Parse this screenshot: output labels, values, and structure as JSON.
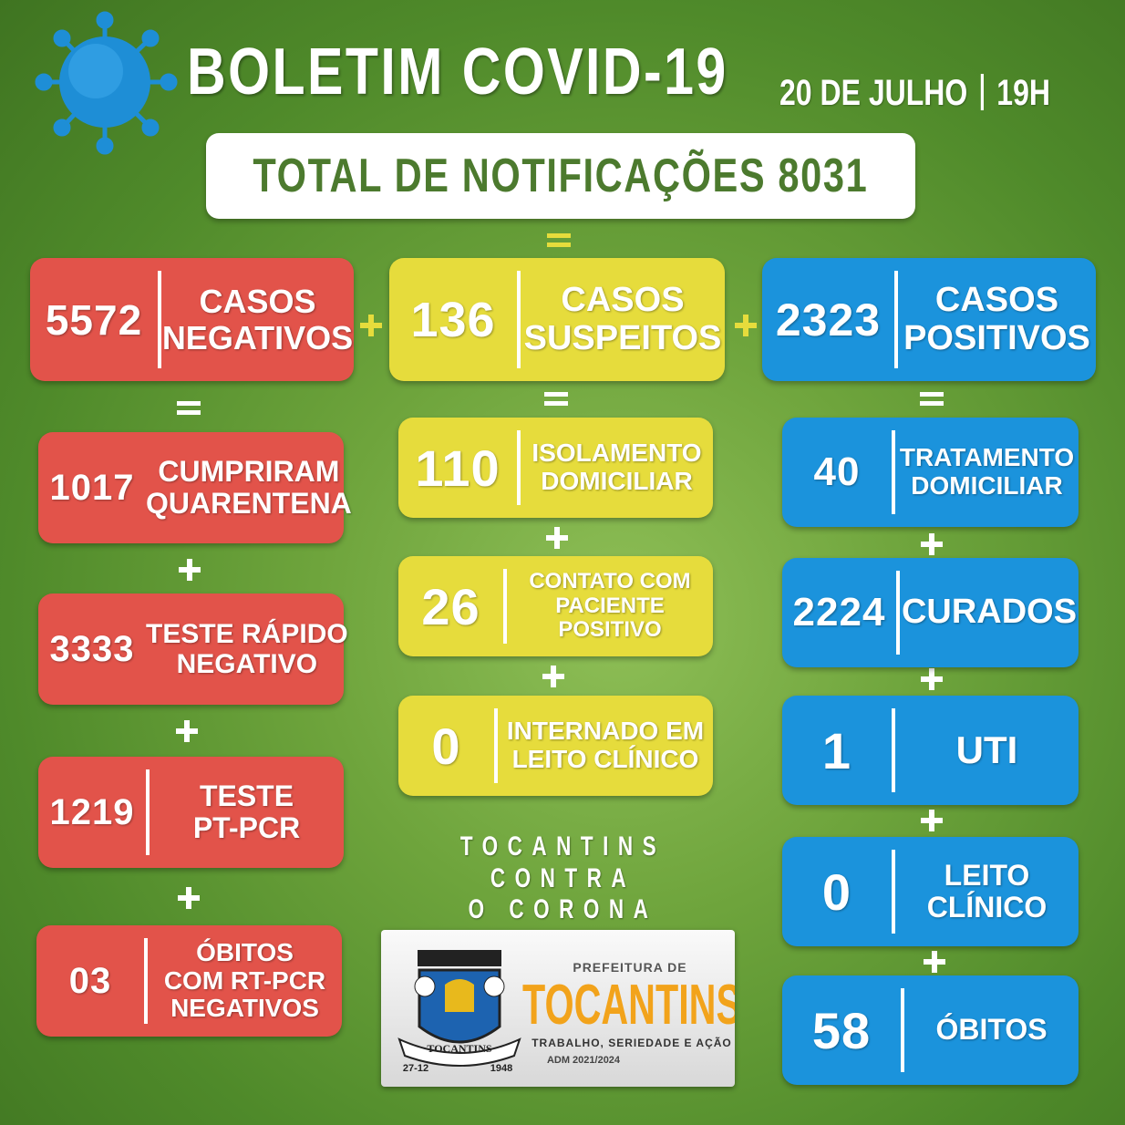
{
  "header": {
    "title": "BOLETIM COVID-19",
    "date": "20 DE JULHO",
    "time": "19H"
  },
  "total": {
    "label": "TOTAL DE NOTIFICAÇÕES",
    "value": 8031
  },
  "columns": [
    {
      "header": {
        "value": 5572,
        "label": [
          "CASOS",
          "NEGATIVOS"
        ]
      },
      "items": [
        {
          "value": 1017,
          "label": [
            "CUMPRIRAM",
            "QUARENTENA"
          ]
        },
        {
          "value": 3333,
          "label": [
            "TESTE RÁPIDO",
            "NEGATIVO"
          ]
        },
        {
          "value": 1219,
          "label": [
            "TESTE",
            "PT-PCR"
          ]
        },
        {
          "value": "03",
          "label": [
            "ÓBITOS",
            "COM RT-PCR",
            "NEGATIVOS"
          ]
        }
      ]
    },
    {
      "header": {
        "value": 136,
        "label": [
          "CASOS",
          "SUSPEITOS"
        ]
      },
      "items": [
        {
          "value": 110,
          "label": [
            "ISOLAMENTO",
            "DOMICILIAR"
          ]
        },
        {
          "value": 26,
          "label": [
            "CONTATO COM",
            "PACIENTE",
            "POSITIVO"
          ]
        },
        {
          "value": 0,
          "label": [
            "INTERNADO EM",
            "LEITO CLÍNICO"
          ]
        }
      ]
    },
    {
      "header": {
        "value": 2323,
        "label": [
          "CASOS",
          "POSITIVOS"
        ]
      },
      "items": [
        {
          "value": 40,
          "label": [
            "TRATAMENTO",
            "DOMICILIAR"
          ]
        },
        {
          "value": 2224,
          "label": [
            "CURADOS"
          ]
        },
        {
          "value": 1,
          "label": [
            "UTI"
          ]
        },
        {
          "value": 0,
          "label": [
            "LEITO",
            "CLÍNICO"
          ]
        },
        {
          "value": 58,
          "label": [
            "ÓBITOS"
          ]
        }
      ]
    }
  ],
  "slogan": [
    "TOCANTINS CONTRA",
    "O CORONA"
  ],
  "logo": {
    "prefix": "PREFEITURA DE",
    "name": "TOCANTINS",
    "motto": "TRABALHO, SERIEDADE E AÇÃO",
    "term": "ADM 2021/2024",
    "crest": {
      "name": "TOCANTINS",
      "date": "27-12",
      "year": "1948"
    }
  }
}
